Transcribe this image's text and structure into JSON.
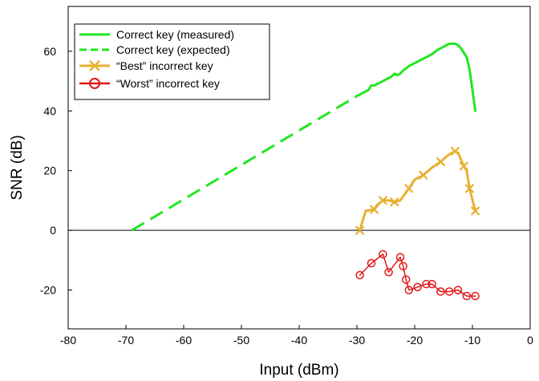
{
  "chart_data": {
    "type": "line",
    "title": "",
    "xlabel": "Input (dBm)",
    "ylabel": "SNR (dB)",
    "xlim": [
      -80,
      0
    ],
    "ylim": [
      -33,
      75
    ],
    "xticks": [
      -80,
      -70,
      -60,
      -50,
      -40,
      -30,
      -20,
      -10,
      0
    ],
    "yticks": [
      -20,
      0,
      20,
      40,
      60
    ],
    "grid": false,
    "legend_position": "top-left",
    "series": [
      {
        "name": "Correct key (measured)",
        "color": "#22e622",
        "style": "solid",
        "x": [
          -30,
          -29,
          -28,
          -27.5,
          -27,
          -26,
          -25,
          -24,
          -23.5,
          -23,
          -22.5,
          -22,
          -21,
          -20,
          -19,
          -18,
          -17,
          -16,
          -15,
          -14,
          -13,
          -12.5,
          -12,
          -11,
          -10.5,
          -10,
          -9.5
        ],
        "y": [
          45,
          46,
          47,
          48.5,
          48.5,
          49.5,
          50.5,
          51.5,
          52.5,
          52,
          52.5,
          53.5,
          55,
          56,
          57,
          58,
          59,
          60.5,
          61.5,
          62.5,
          62.5,
          62,
          61,
          58,
          54,
          47,
          40
        ]
      },
      {
        "name": "Correct key (expected)",
        "color": "#22e622",
        "style": "dashed",
        "x": [
          -69,
          -30
        ],
        "y": [
          0,
          45
        ]
      },
      {
        "name": "“Best” incorrect key",
        "color": "#e8b030",
        "marker": "x",
        "x": [
          -29.5,
          -28.5,
          -27,
          -26.5,
          -25.5,
          -24.5,
          -23.5,
          -22.5,
          -21,
          -20,
          -18.5,
          -17,
          -15.5,
          -14,
          -13,
          -12.5,
          -11.5,
          -11,
          -10.5,
          -9.5
        ],
        "y": [
          0,
          6.5,
          7,
          8.5,
          10,
          10,
          9.5,
          10,
          14,
          17,
          18.5,
          21,
          23,
          25.5,
          26.5,
          26,
          21.5,
          20,
          14,
          6.5
        ]
      },
      {
        "name": "“Worst” incorrect key",
        "color": "#e01818",
        "marker": "o",
        "x": [
          -29.5,
          -27.5,
          -25.5,
          -24.5,
          -22.5,
          -22,
          -21.5,
          -21,
          -19.5,
          -18,
          -17,
          -15.5,
          -14,
          -12.5,
          -11,
          -9.5
        ],
        "y": [
          -15,
          -11,
          -8,
          -14,
          -9,
          -12,
          -16.5,
          -20,
          -19,
          -18,
          -18,
          -20.5,
          -20.5,
          -20,
          -22,
          -22
        ]
      }
    ]
  }
}
